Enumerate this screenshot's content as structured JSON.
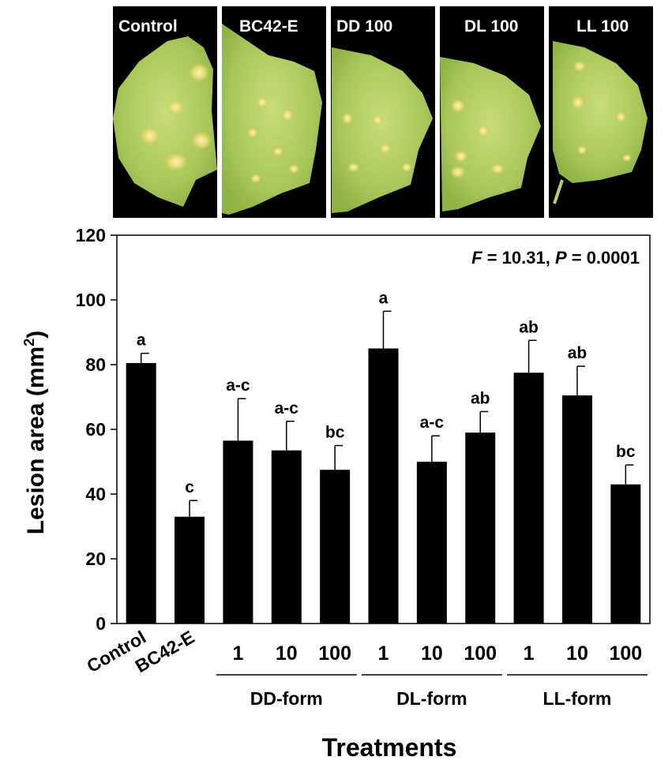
{
  "photos": {
    "labels": [
      "Control",
      "BC42-E",
      "DD 100",
      "DL 100",
      "LL 100"
    ]
  },
  "chart_data": {
    "type": "bar",
    "annotation": {
      "F_symbol": "F",
      "F_text": " = 10.31, ",
      "P_symbol": "P",
      "P_text": " = 0.0001"
    },
    "ylabel": "Lesion area (mm",
    "ylabel_sup": "2",
    "ylabel_close": ")",
    "xlabel": "Treatments",
    "ylim": [
      0,
      120
    ],
    "yticks": [
      "0",
      "20",
      "40",
      "60",
      "80",
      "100",
      "120"
    ],
    "categories": [
      "Control",
      "BC42-E",
      "1",
      "10",
      "100",
      "1",
      "10",
      "100",
      "1",
      "10",
      "100"
    ],
    "values": [
      80.5,
      33,
      56.5,
      53.5,
      47.5,
      85,
      50,
      59,
      77.5,
      70.5,
      43
    ],
    "errors": [
      3,
      5,
      13,
      9,
      7.5,
      11.5,
      8,
      6.5,
      10,
      9,
      6
    ],
    "letters": [
      "a",
      "c",
      "a-c",
      "a-c",
      "bc",
      "a",
      "a-c",
      "ab",
      "ab",
      "ab",
      "bc"
    ],
    "groups": [
      {
        "label": "DD-form",
        "start": 2,
        "end": 4
      },
      {
        "label": "DL-form",
        "start": 5,
        "end": 7
      },
      {
        "label": "LL-form",
        "start": 8,
        "end": 10
      }
    ],
    "bar_color": "#000000",
    "legend": "none",
    "grid": false
  }
}
